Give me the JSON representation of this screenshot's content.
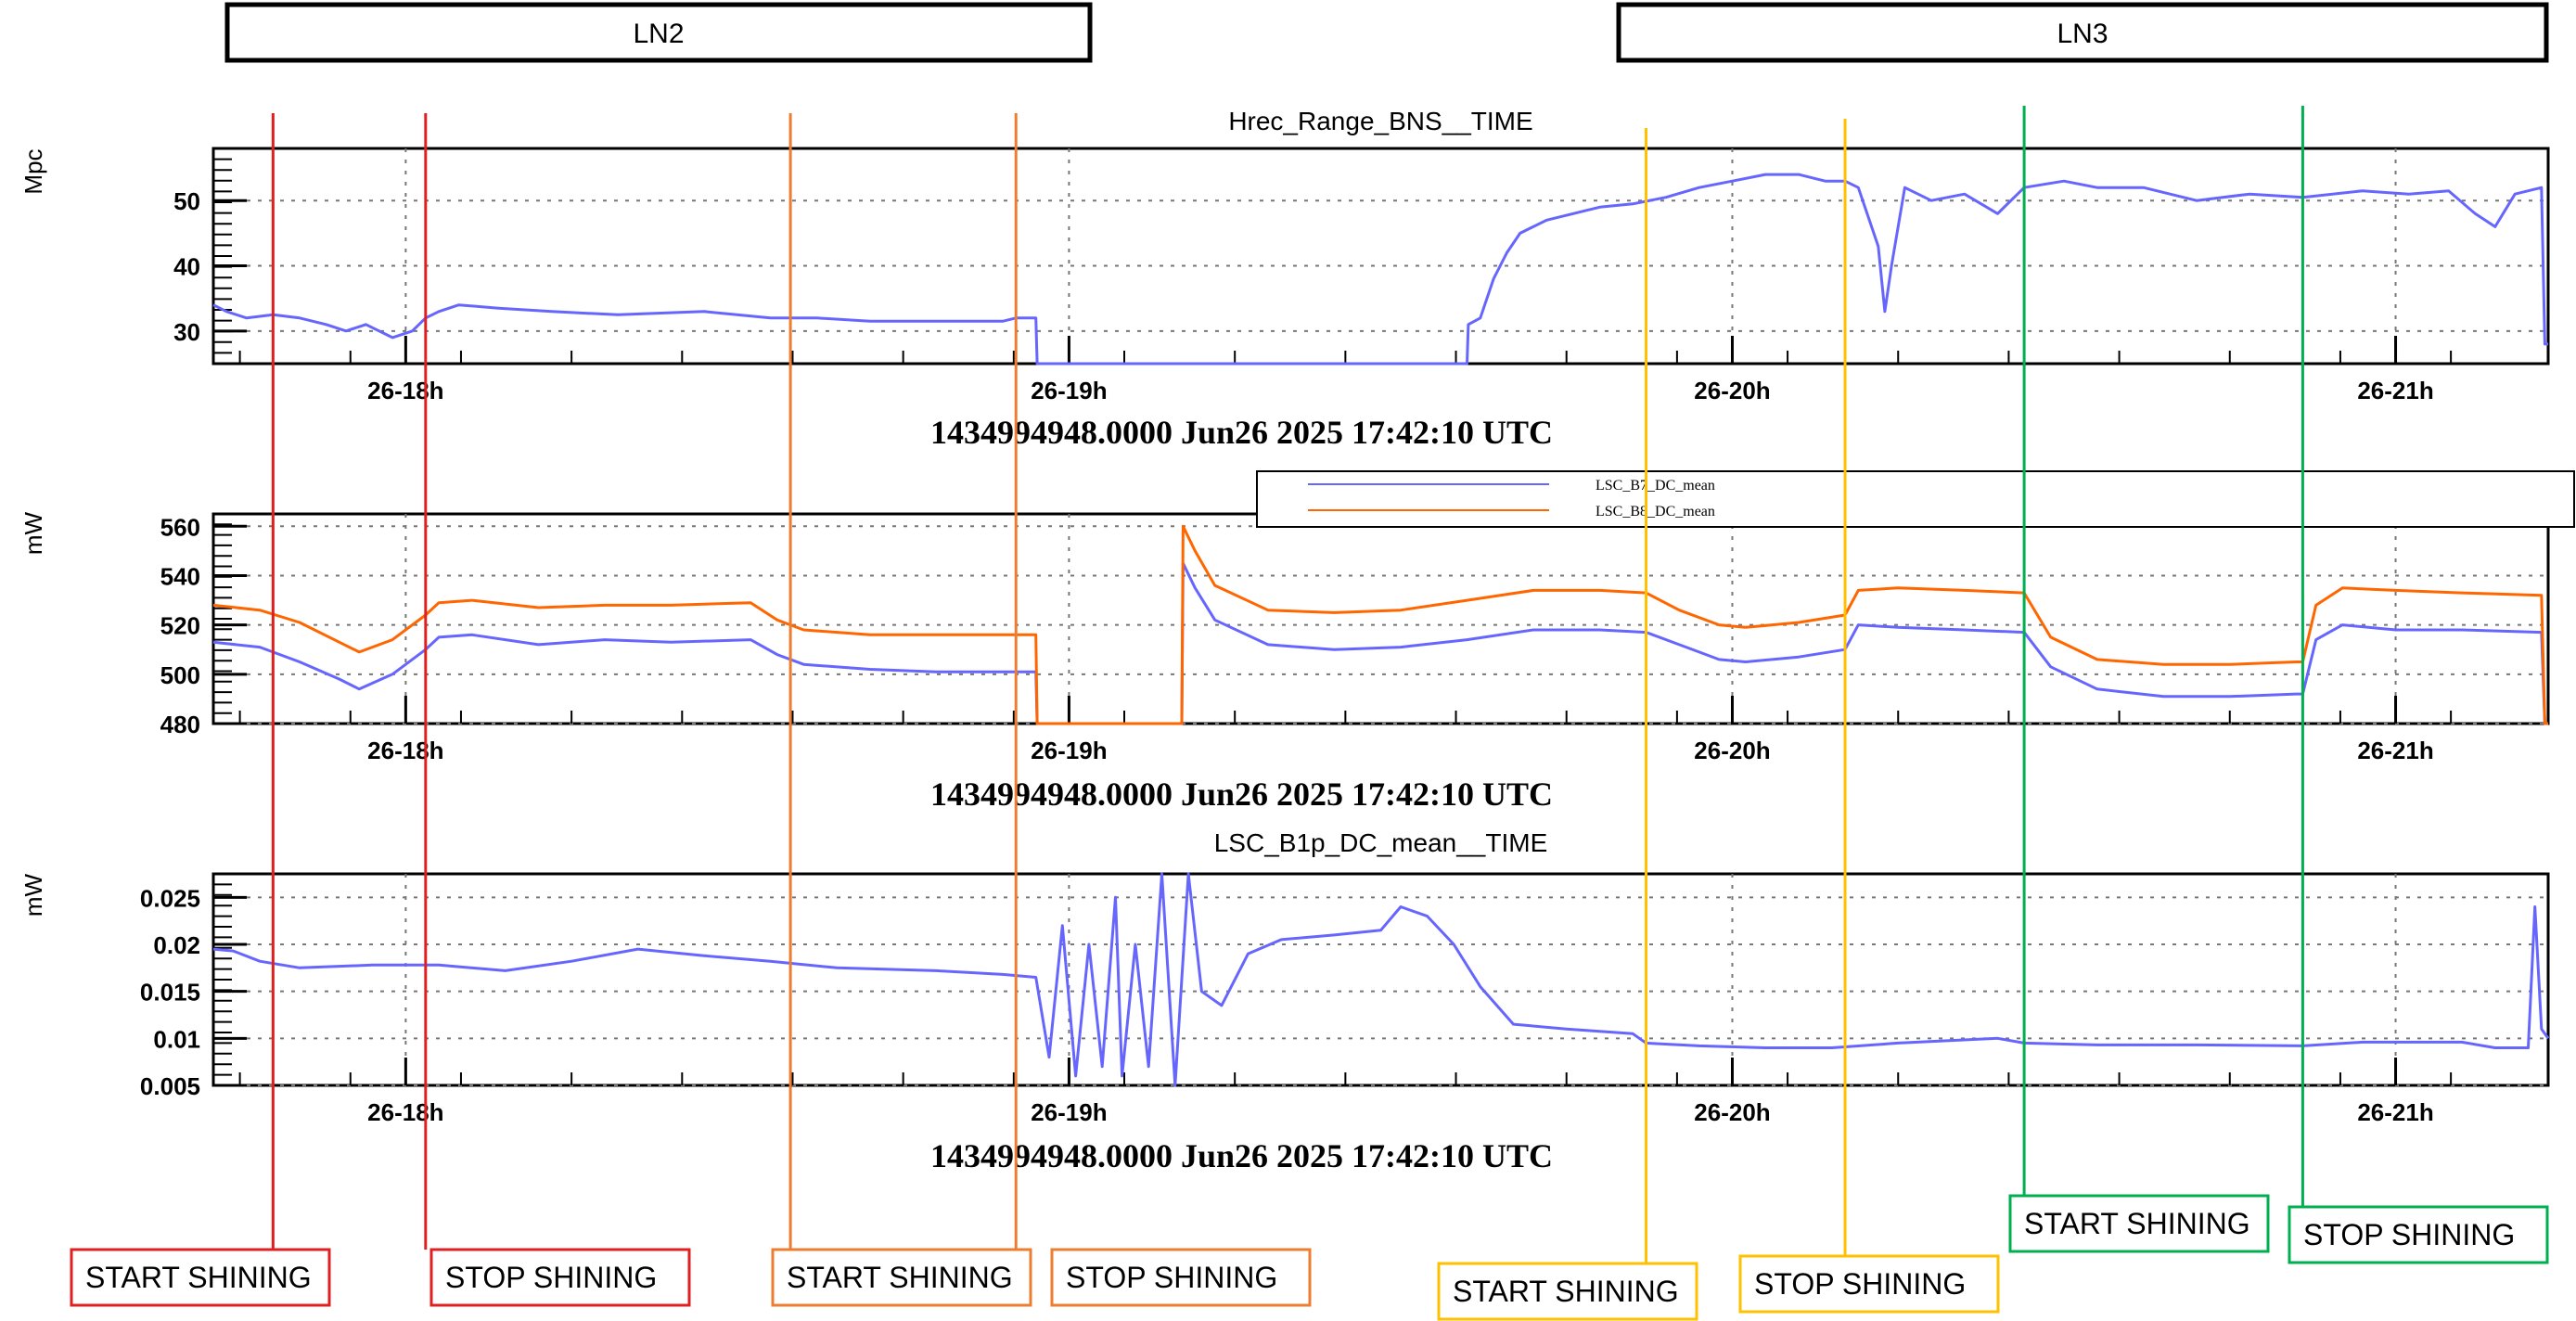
{
  "section_headers": [
    {
      "label": "LN2"
    },
    {
      "label": "LN3"
    }
  ],
  "time_axis": {
    "ticks": [
      "26-18h",
      "26-19h",
      "26-20h",
      "26-21h"
    ],
    "timestamp_caption": "1434994948.0000 Jun26 2025 17:42:10 UTC"
  },
  "markers": [
    {
      "label": "START SHINING",
      "time_h": 17.8,
      "color": "#e02020"
    },
    {
      "label": "STOP SHINING",
      "time_h": 18.03,
      "color": "#e02020"
    },
    {
      "label": "START SHINING",
      "time_h": 18.58,
      "color": "#ed7d31"
    },
    {
      "label": "STOP SHINING",
      "time_h": 18.92,
      "color": "#ed7d31"
    },
    {
      "label": "START SHINING",
      "time_h": 19.87,
      "color": "#ffc000"
    },
    {
      "label": "STOP SHINING",
      "time_h": 20.17,
      "color": "#ffc000"
    },
    {
      "label": "START SHINING",
      "time_h": 20.44,
      "color": "#00b050"
    },
    {
      "label": "STOP SHINING",
      "time_h": 20.86,
      "color": "#00b050"
    }
  ],
  "chart_data": [
    {
      "type": "line",
      "title": "Hrec_Range_BNS__TIME",
      "ylabel": "Mpc",
      "xlabel": "",
      "xlim": [
        17.71,
        21.23
      ],
      "ylim": [
        25,
        58
      ],
      "y_ticks": [
        30,
        40,
        50
      ],
      "grid": true,
      "series": [
        {
          "name": "",
          "color": "#6666ff",
          "points": [
            [
              17.71,
              34
            ],
            [
              17.73,
              33
            ],
            [
              17.76,
              32
            ],
            [
              17.8,
              32.5
            ],
            [
              17.84,
              32
            ],
            [
              17.88,
              31
            ],
            [
              17.91,
              30
            ],
            [
              17.94,
              31
            ],
            [
              17.98,
              29
            ],
            [
              18.01,
              30
            ],
            [
              18.03,
              32
            ],
            [
              18.05,
              33
            ],
            [
              18.08,
              34
            ],
            [
              18.14,
              33.5
            ],
            [
              18.22,
              33
            ],
            [
              18.32,
              32.5
            ],
            [
              18.45,
              33
            ],
            [
              18.55,
              32
            ],
            [
              18.62,
              32
            ],
            [
              18.7,
              31.5
            ],
            [
              18.8,
              31.5
            ],
            [
              18.9,
              31.5
            ],
            [
              18.92,
              32
            ],
            [
              18.95,
              32
            ],
            [
              18.952,
              25
            ],
            [
              19.6,
              25
            ],
            [
              19.602,
              31
            ],
            [
              19.62,
              32
            ],
            [
              19.64,
              38
            ],
            [
              19.66,
              42
            ],
            [
              19.68,
              45
            ],
            [
              19.72,
              47
            ],
            [
              19.76,
              48
            ],
            [
              19.8,
              49
            ],
            [
              19.85,
              49.5
            ],
            [
              19.9,
              50.5
            ],
            [
              19.95,
              52
            ],
            [
              20.0,
              53
            ],
            [
              20.05,
              54
            ],
            [
              20.1,
              54
            ],
            [
              20.14,
              53
            ],
            [
              20.17,
              53
            ],
            [
              20.19,
              52
            ],
            [
              20.22,
              43
            ],
            [
              20.23,
              33
            ],
            [
              20.24,
              40
            ],
            [
              20.26,
              52
            ],
            [
              20.3,
              50
            ],
            [
              20.35,
              51
            ],
            [
              20.4,
              48
            ],
            [
              20.44,
              52
            ],
            [
              20.5,
              53
            ],
            [
              20.55,
              52
            ],
            [
              20.62,
              52
            ],
            [
              20.7,
              50
            ],
            [
              20.78,
              51
            ],
            [
              20.86,
              50.5
            ],
            [
              20.95,
              51.5
            ],
            [
              21.02,
              51
            ],
            [
              21.08,
              51.5
            ],
            [
              21.12,
              48
            ],
            [
              21.15,
              46
            ],
            [
              21.18,
              51
            ],
            [
              21.22,
              52
            ],
            [
              21.225,
              28
            ],
            [
              21.23,
              28
            ]
          ]
        }
      ]
    },
    {
      "type": "line",
      "title": "",
      "ylabel": "mW",
      "xlabel": "",
      "xlim": [
        17.71,
        21.23
      ],
      "ylim": [
        480,
        565
      ],
      "y_ticks": [
        480,
        500,
        520,
        540,
        560
      ],
      "grid": true,
      "legend": "top-right",
      "series": [
        {
          "name": "LSC_B7_DC_mean",
          "color": "#6666ff",
          "points": [
            [
              17.71,
              513
            ],
            [
              17.78,
              511
            ],
            [
              17.84,
              505
            ],
            [
              17.9,
              498
            ],
            [
              17.93,
              494
            ],
            [
              17.98,
              500
            ],
            [
              18.03,
              510
            ],
            [
              18.05,
              515
            ],
            [
              18.1,
              516
            ],
            [
              18.2,
              512
            ],
            [
              18.3,
              514
            ],
            [
              18.4,
              513
            ],
            [
              18.52,
              514
            ],
            [
              18.56,
              508
            ],
            [
              18.6,
              504
            ],
            [
              18.7,
              502
            ],
            [
              18.8,
              501
            ],
            [
              18.9,
              501
            ],
            [
              18.95,
              501
            ],
            [
              18.952,
              480
            ],
            [
              19.17,
              480
            ],
            [
              19.172,
              545
            ],
            [
              19.19,
              535
            ],
            [
              19.22,
              522
            ],
            [
              19.3,
              512
            ],
            [
              19.4,
              510
            ],
            [
              19.5,
              511
            ],
            [
              19.6,
              514
            ],
            [
              19.7,
              518
            ],
            [
              19.8,
              518
            ],
            [
              19.87,
              517
            ],
            [
              19.92,
              512
            ],
            [
              19.98,
              506
            ],
            [
              20.02,
              505
            ],
            [
              20.1,
              507
            ],
            [
              20.17,
              510
            ],
            [
              20.19,
              520
            ],
            [
              20.25,
              519
            ],
            [
              20.35,
              518
            ],
            [
              20.44,
              517
            ],
            [
              20.48,
              503
            ],
            [
              20.55,
              494
            ],
            [
              20.65,
              491
            ],
            [
              20.75,
              491
            ],
            [
              20.85,
              492
            ],
            [
              20.86,
              492
            ],
            [
              20.88,
              514
            ],
            [
              20.92,
              520
            ],
            [
              21.0,
              518
            ],
            [
              21.1,
              518
            ],
            [
              21.22,
              517
            ],
            [
              21.225,
              480
            ],
            [
              21.23,
              480
            ]
          ]
        },
        {
          "name": "LSC_B8_DC_mean",
          "color": "#ff6600",
          "points": [
            [
              17.71,
              528
            ],
            [
              17.78,
              526
            ],
            [
              17.84,
              521
            ],
            [
              17.9,
              513
            ],
            [
              17.93,
              509
            ],
            [
              17.98,
              514
            ],
            [
              18.03,
              524
            ],
            [
              18.05,
              529
            ],
            [
              18.1,
              530
            ],
            [
              18.2,
              527
            ],
            [
              18.3,
              528
            ],
            [
              18.4,
              528
            ],
            [
              18.52,
              529
            ],
            [
              18.56,
              522
            ],
            [
              18.6,
              518
            ],
            [
              18.7,
              516
            ],
            [
              18.8,
              516
            ],
            [
              18.9,
              516
            ],
            [
              18.95,
              516
            ],
            [
              18.952,
              480
            ],
            [
              19.17,
              480
            ],
            [
              19.172,
              560
            ],
            [
              19.19,
              550
            ],
            [
              19.22,
              536
            ],
            [
              19.3,
              526
            ],
            [
              19.4,
              525
            ],
            [
              19.5,
              526
            ],
            [
              19.6,
              530
            ],
            [
              19.7,
              534
            ],
            [
              19.8,
              534
            ],
            [
              19.87,
              533
            ],
            [
              19.92,
              526
            ],
            [
              19.98,
              520
            ],
            [
              20.02,
              519
            ],
            [
              20.1,
              521
            ],
            [
              20.17,
              524
            ],
            [
              20.19,
              534
            ],
            [
              20.25,
              535
            ],
            [
              20.35,
              534
            ],
            [
              20.44,
              533
            ],
            [
              20.48,
              515
            ],
            [
              20.55,
              506
            ],
            [
              20.65,
              504
            ],
            [
              20.75,
              504
            ],
            [
              20.85,
              505
            ],
            [
              20.86,
              505
            ],
            [
              20.88,
              528
            ],
            [
              20.92,
              535
            ],
            [
              21.0,
              534
            ],
            [
              21.1,
              533
            ],
            [
              21.22,
              532
            ],
            [
              21.225,
              480
            ],
            [
              21.23,
              480
            ]
          ]
        }
      ]
    },
    {
      "type": "line",
      "title": "LSC_B1p_DC_mean__TIME",
      "ylabel": "mW",
      "xlabel": "",
      "xlim": [
        17.71,
        21.23
      ],
      "ylim": [
        0.005,
        0.0275
      ],
      "y_ticks": [
        0.005,
        0.01,
        0.015,
        0.02,
        0.025
      ],
      "grid": true,
      "series": [
        {
          "name": "",
          "color": "#6666ff",
          "points": [
            [
              17.71,
              0.0195
            ],
            [
              17.74,
              0.0193
            ],
            [
              17.78,
              0.0182
            ],
            [
              17.84,
              0.0175
            ],
            [
              17.95,
              0.0178
            ],
            [
              18.05,
              0.0178
            ],
            [
              18.15,
              0.0172
            ],
            [
              18.25,
              0.0182
            ],
            [
              18.35,
              0.0195
            ],
            [
              18.45,
              0.0188
            ],
            [
              18.55,
              0.0182
            ],
            [
              18.65,
              0.0175
            ],
            [
              18.8,
              0.0172
            ],
            [
              18.9,
              0.0168
            ],
            [
              18.95,
              0.0165
            ],
            [
              18.97,
              0.008
            ],
            [
              18.99,
              0.022
            ],
            [
              19.01,
              0.006
            ],
            [
              19.03,
              0.02
            ],
            [
              19.05,
              0.007
            ],
            [
              19.07,
              0.025
            ],
            [
              19.08,
              0.006
            ],
            [
              19.1,
              0.02
            ],
            [
              19.12,
              0.007
            ],
            [
              19.14,
              0.0275
            ],
            [
              19.16,
              0.005
            ],
            [
              19.18,
              0.0275
            ],
            [
              19.2,
              0.015
            ],
            [
              19.23,
              0.0135
            ],
            [
              19.27,
              0.019
            ],
            [
              19.32,
              0.0205
            ],
            [
              19.4,
              0.021
            ],
            [
              19.47,
              0.0215
            ],
            [
              19.5,
              0.024
            ],
            [
              19.54,
              0.023
            ],
            [
              19.58,
              0.02
            ],
            [
              19.62,
              0.0155
            ],
            [
              19.67,
              0.0115
            ],
            [
              19.75,
              0.011
            ],
            [
              19.85,
              0.0105
            ],
            [
              19.87,
              0.0095
            ],
            [
              19.95,
              0.0092
            ],
            [
              20.05,
              0.009
            ],
            [
              20.15,
              0.009
            ],
            [
              20.25,
              0.0095
            ],
            [
              20.4,
              0.01
            ],
            [
              20.44,
              0.0095
            ],
            [
              20.55,
              0.0093
            ],
            [
              20.7,
              0.0093
            ],
            [
              20.86,
              0.0092
            ],
            [
              20.95,
              0.0096
            ],
            [
              21.1,
              0.0096
            ],
            [
              21.15,
              0.009
            ],
            [
              21.2,
              0.009
            ],
            [
              21.21,
              0.024
            ],
            [
              21.22,
              0.011
            ],
            [
              21.23,
              0.01
            ]
          ]
        }
      ]
    }
  ]
}
